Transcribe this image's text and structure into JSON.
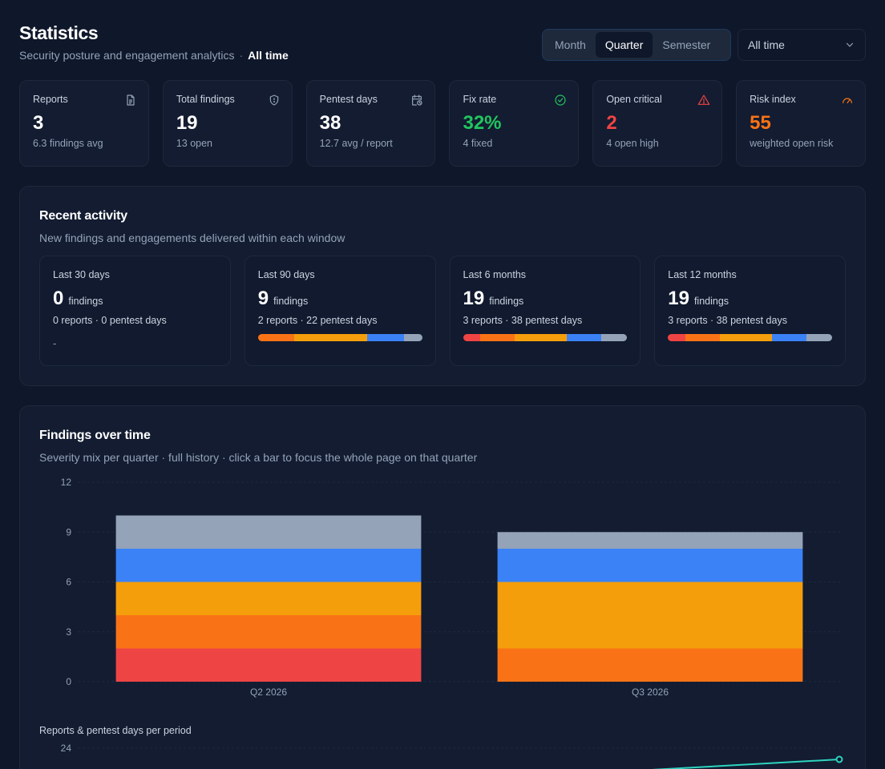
{
  "header": {
    "title": "Statistics",
    "subtitle": "Security posture and engagement analytics",
    "separator": "·",
    "range_label": "All time"
  },
  "period_toggle": {
    "options": [
      "Month",
      "Quarter",
      "Semester"
    ],
    "active": "Quarter"
  },
  "range_select": {
    "value": "All time"
  },
  "kpis": [
    {
      "label": "Reports",
      "value": "3",
      "sub": "6.3 findings avg",
      "icon": "document-icon",
      "value_color": "#ffffff"
    },
    {
      "label": "Total findings",
      "value": "19",
      "sub": "13 open",
      "icon": "shield-icon",
      "value_color": "#ffffff"
    },
    {
      "label": "Pentest days",
      "value": "38",
      "sub": "12.7 avg / report",
      "icon": "calendar-clock-icon",
      "value_color": "#ffffff"
    },
    {
      "label": "Fix rate",
      "value": "32%",
      "sub": "4 fixed",
      "icon": "check-circle-icon",
      "value_color": "#22c55e"
    },
    {
      "label": "Open critical",
      "value": "2",
      "sub": "4 open high",
      "icon": "warning-icon",
      "value_color": "#ef4444"
    },
    {
      "label": "Risk index",
      "value": "55",
      "sub": "weighted open risk",
      "icon": "gauge-icon",
      "value_color": "#f97316"
    }
  ],
  "activity": {
    "title": "Recent activity",
    "description": "New findings and engagements delivered within each window",
    "unit": "findings",
    "windows": [
      {
        "label": "Last 30 days",
        "count": "0",
        "sub": "0 reports · 0 pentest days",
        "empty_text": "-",
        "mix": null
      },
      {
        "label": "Last 90 days",
        "count": "9",
        "sub": "2 reports · 22 pentest days",
        "mix": [
          0,
          2,
          4,
          2,
          1
        ]
      },
      {
        "label": "Last 6 months",
        "count": "19",
        "sub": "3 reports · 38 pentest days",
        "mix": [
          2,
          4,
          6,
          4,
          3
        ]
      },
      {
        "label": "Last 12 months",
        "count": "19",
        "sub": "3 reports · 38 pentest days",
        "mix": [
          2,
          4,
          6,
          4,
          3
        ]
      }
    ]
  },
  "severity_colors": {
    "critical": "#ef4444",
    "high": "#f97316",
    "medium": "#f59e0b",
    "low": "#3b82f6",
    "info": "#94a3b8"
  },
  "findings_chart": {
    "title": "Findings over time",
    "description": "Severity mix per quarter · full history · click a bar to focus the whole page on that quarter"
  },
  "chart_data": [
    {
      "type": "bar",
      "stacked": true,
      "categories": [
        "Q2 2026",
        "Q3 2026"
      ],
      "series": [
        {
          "values": [
            2,
            0
          ]
        },
        {
          "values": [
            2,
            2
          ]
        },
        {
          "values": [
            2,
            4
          ]
        },
        {
          "values": [
            2,
            2
          ]
        },
        {
          "values": [
            2,
            1
          ]
        }
      ],
      "yticks": [
        0,
        3,
        6,
        9,
        12
      ],
      "ylim": [
        0,
        12
      ],
      "grid": true
    },
    {
      "type": "line",
      "title": "Reports & pentest days per period",
      "yticks_visible": [
        "24"
      ],
      "ylim": [
        0,
        24
      ]
    }
  ]
}
